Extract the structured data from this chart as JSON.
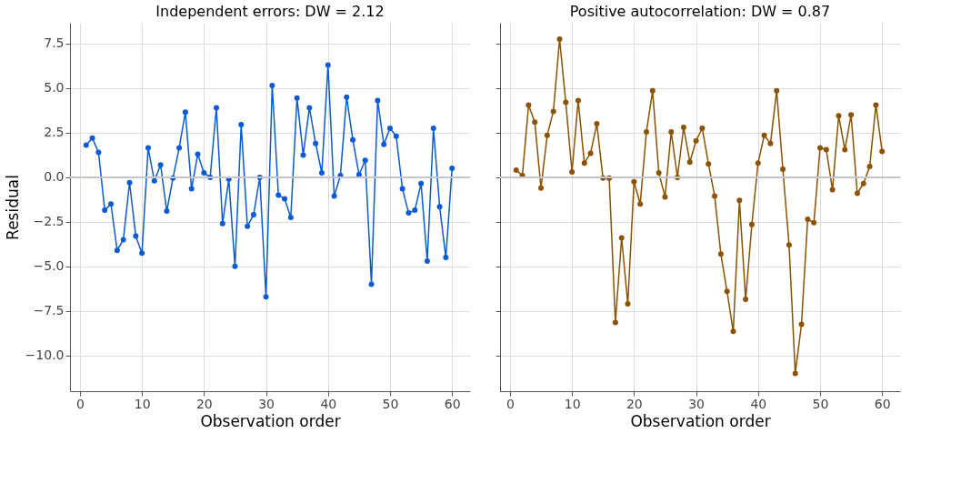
{
  "chart_data": [
    {
      "type": "line",
      "title": "Independent errors: DW = 2.12",
      "xlabel": "Observation order",
      "ylabel": "Residual",
      "marker": "circle",
      "line_style": "solid",
      "grid": true,
      "x": [
        1,
        2,
        3,
        4,
        5,
        6,
        7,
        8,
        9,
        10,
        11,
        12,
        13,
        14,
        15,
        16,
        17,
        18,
        19,
        20,
        21,
        22,
        23,
        24,
        25,
        26,
        27,
        28,
        29,
        30,
        31,
        32,
        33,
        34,
        35,
        36,
        37,
        38,
        39,
        40,
        41,
        42,
        43,
        44,
        45,
        46,
        47,
        48,
        49,
        50,
        51,
        52,
        53,
        54,
        55,
        56,
        57,
        58,
        59,
        60
      ],
      "series": [
        {
          "color": "#0a5bd3",
          "values": [
            1.8,
            2.2,
            1.4,
            -1.85,
            -1.5,
            -4.1,
            -3.5,
            -0.3,
            -3.3,
            -4.25,
            1.65,
            -0.2,
            0.7,
            -1.9,
            -0.05,
            1.65,
            3.65,
            -0.65,
            1.3,
            0.25,
            0.0,
            3.9,
            -2.6,
            -0.1,
            -5.0,
            2.95,
            -2.75,
            -2.1,
            0.0,
            -6.7,
            5.15,
            -1.0,
            -1.2,
            -2.25,
            4.45,
            1.25,
            3.9,
            1.9,
            0.25,
            6.3,
            -1.05,
            0.1,
            4.5,
            2.1,
            0.15,
            0.95,
            -6.0,
            4.3,
            1.85,
            2.75,
            2.3,
            -0.65,
            -2.0,
            -1.85,
            -0.35,
            -4.7,
            2.75,
            -1.65,
            -4.5,
            0.5
          ]
        }
      ],
      "xlim": [
        -1.6,
        62.9
      ],
      "xticks": [
        0,
        10,
        20,
        30,
        40,
        50,
        60
      ],
      "ylim": [
        -12.0,
        8.67
      ],
      "yticks": [
        {
          "value": -10,
          "label": "−10.0"
        },
        {
          "value": -7.5,
          "label": "−7.5"
        },
        {
          "value": -5,
          "label": "−5.0"
        },
        {
          "value": -2.5,
          "label": "−2.5"
        },
        {
          "value": 0,
          "label": "0.0"
        },
        {
          "value": 2.5,
          "label": "2.5"
        },
        {
          "value": 5,
          "label": "5.0"
        },
        {
          "value": 7.5,
          "label": "7.5"
        }
      ],
      "ref_lines": [
        {
          "axis": "y",
          "value": 0,
          "color": "#c4c4cc"
        }
      ]
    },
    {
      "type": "line",
      "title": "Positive autocorrelation: DW = 0.87",
      "xlabel": "Observation order",
      "marker": "circle",
      "line_style": "solid",
      "grid": true,
      "tick_labels": "x",
      "x": [
        1,
        2,
        3,
        4,
        5,
        6,
        7,
        8,
        9,
        10,
        11,
        12,
        13,
        14,
        15,
        16,
        17,
        18,
        19,
        20,
        21,
        22,
        23,
        24,
        25,
        26,
        27,
        28,
        29,
        30,
        31,
        32,
        33,
        34,
        35,
        36,
        37,
        38,
        39,
        40,
        41,
        42,
        43,
        44,
        45,
        46,
        47,
        48,
        49,
        50,
        51,
        52,
        53,
        54,
        55,
        56,
        57,
        58,
        59,
        60
      ],
      "series": [
        {
          "color": "#8b5200",
          "values": [
            0.4,
            0.1,
            4.05,
            3.1,
            -0.6,
            2.35,
            3.7,
            7.75,
            4.2,
            0.3,
            4.3,
            0.8,
            1.35,
            3.0,
            -0.05,
            -0.05,
            -8.15,
            -3.4,
            -7.1,
            -0.25,
            -1.5,
            2.55,
            4.85,
            0.25,
            -1.1,
            2.55,
            0.0,
            2.8,
            0.85,
            2.05,
            2.75,
            0.75,
            -1.05,
            -4.3,
            -6.4,
            -8.65,
            -1.3,
            -6.85,
            -2.65,
            0.8,
            2.35,
            1.9,
            4.85,
            0.45,
            -3.8,
            -11.0,
            -8.25,
            -2.35,
            -2.55,
            1.65,
            1.55,
            -0.7,
            3.45,
            1.55,
            3.5,
            -0.9,
            -0.35,
            0.6,
            4.05,
            1.45
          ]
        }
      ],
      "xlim": [
        -1.6,
        62.9
      ],
      "xticks": [
        0,
        10,
        20,
        30,
        40,
        50,
        60
      ],
      "ylim": [
        -12.0,
        8.67
      ],
      "yticks": [
        -10,
        -7.5,
        -5,
        -2.5,
        0,
        2.5,
        5,
        7.5
      ],
      "ref_lines": [
        {
          "axis": "y",
          "value": 0,
          "color": "#c4c4cc"
        }
      ]
    }
  ]
}
